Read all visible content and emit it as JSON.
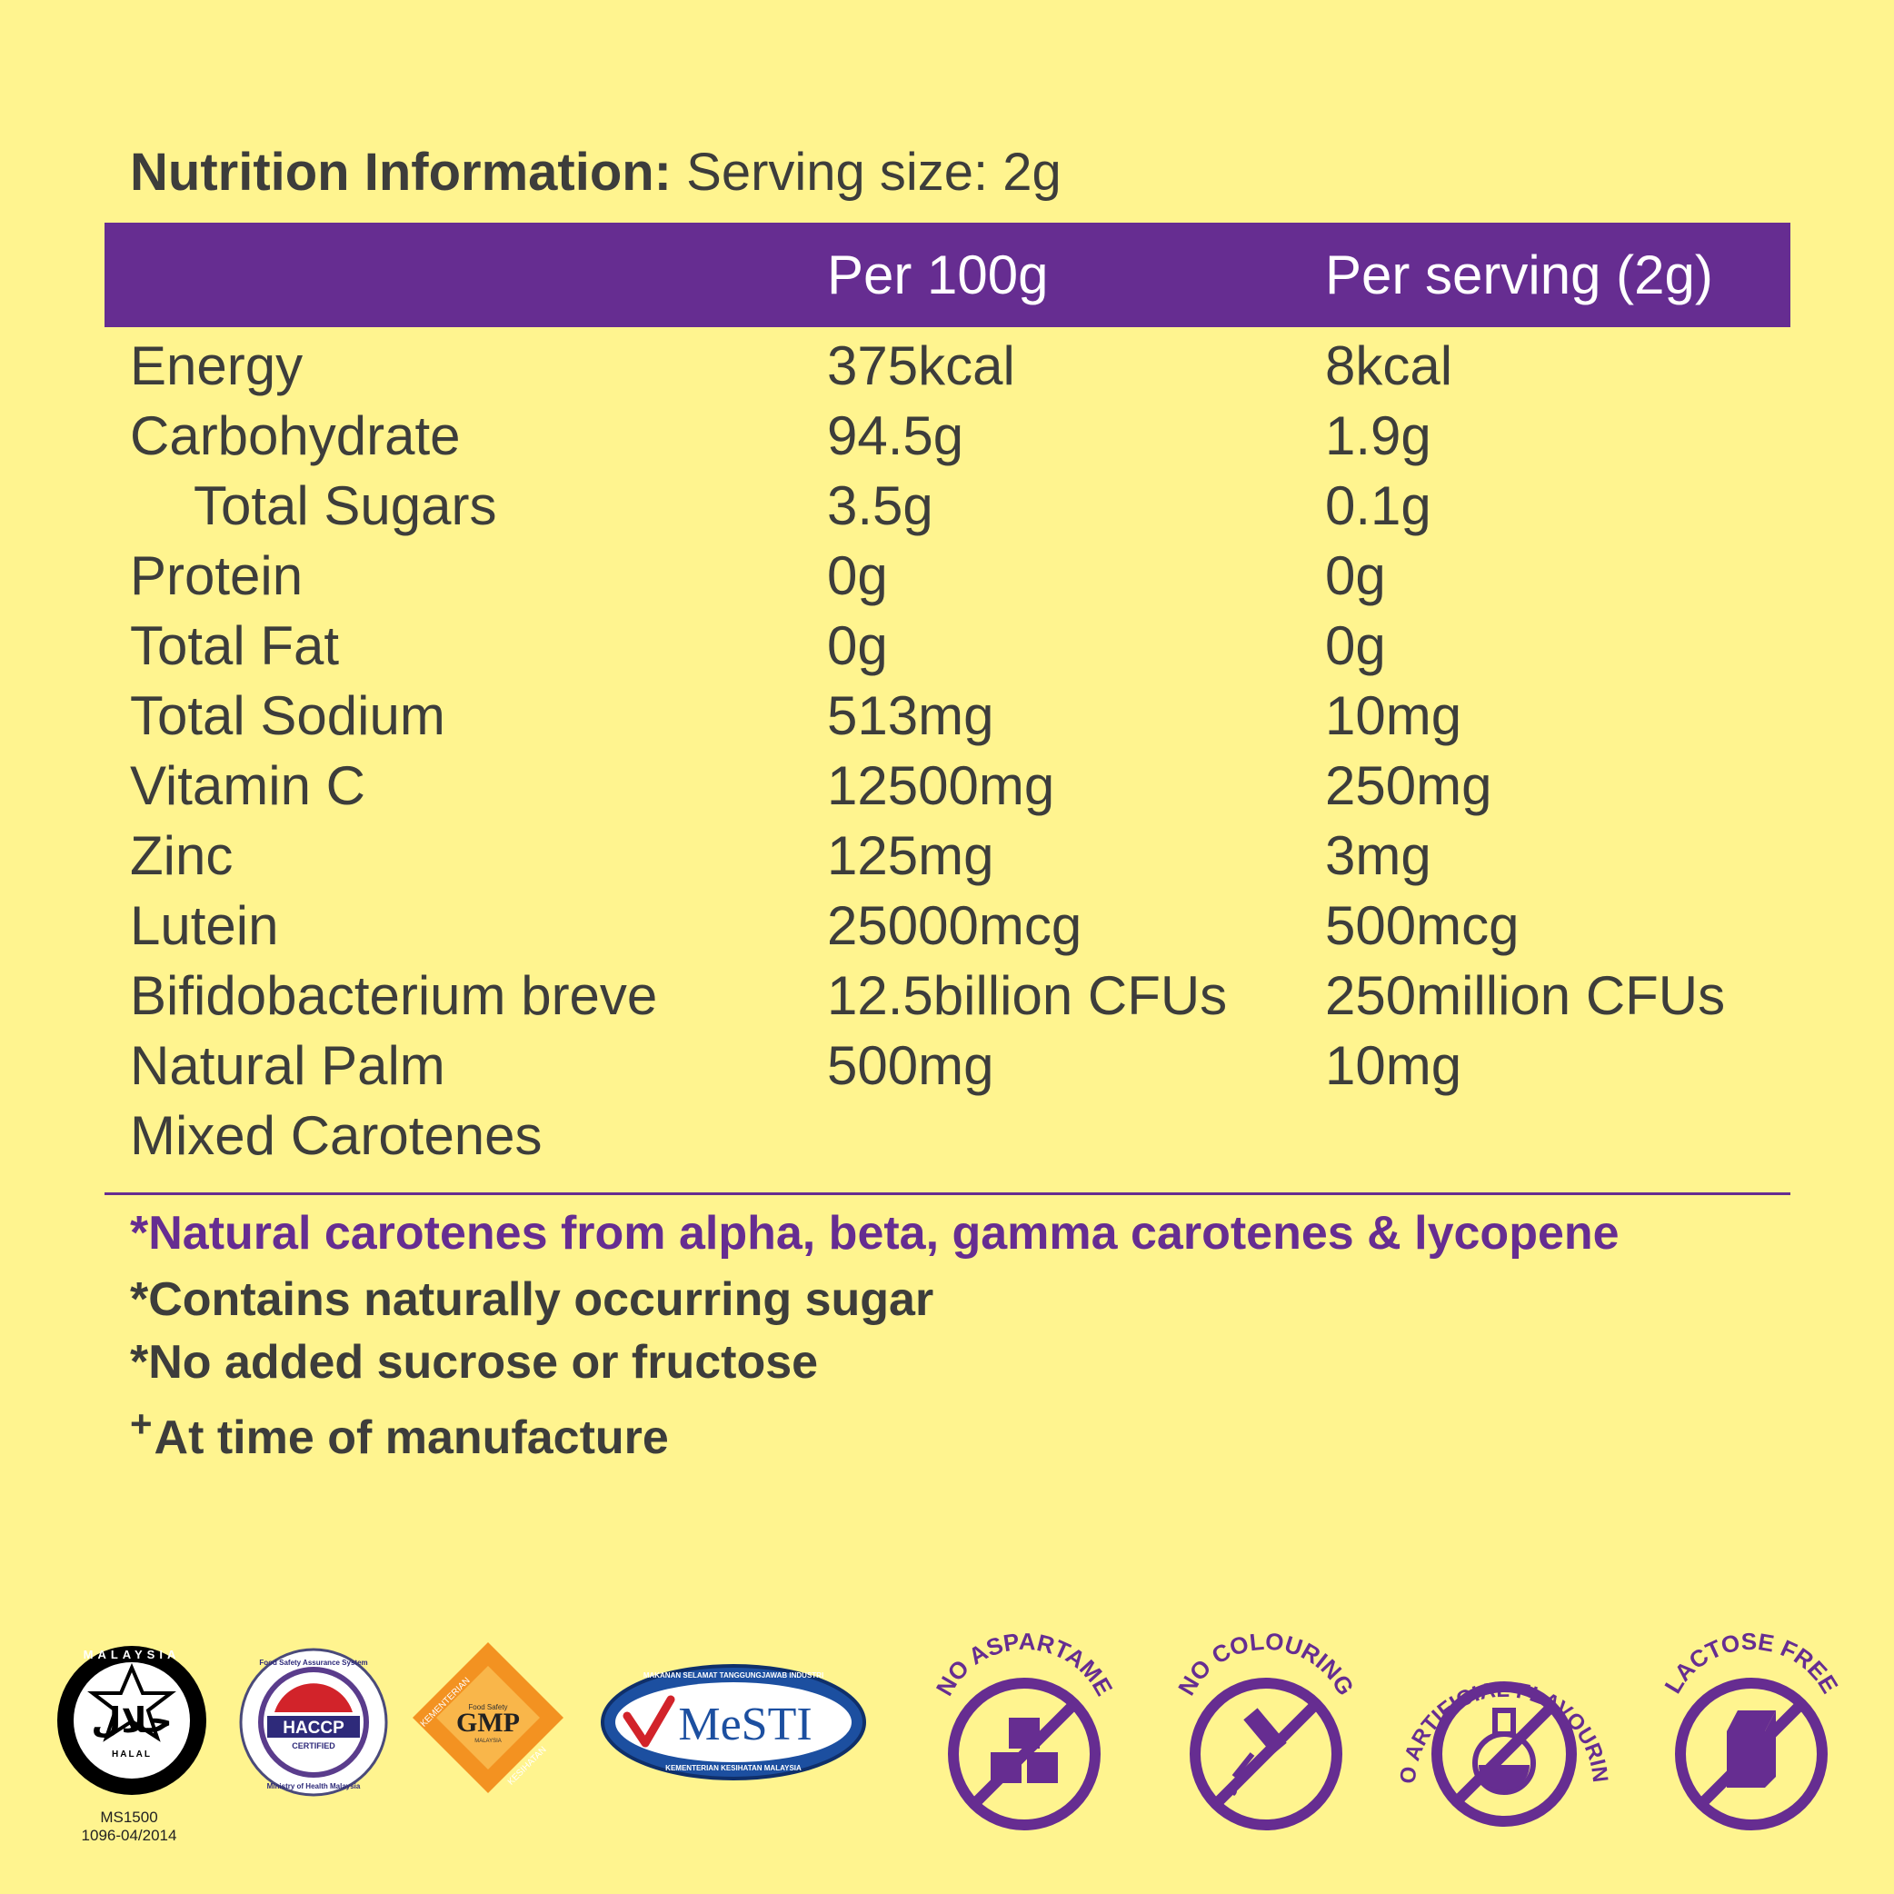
{
  "title": {
    "bold": "Nutrition Information:",
    "rest": " Serving size: 2g"
  },
  "columns": {
    "per100": "Per 100g",
    "perServing": "Per serving (2g)"
  },
  "rows": [
    {
      "name": "Energy",
      "per100": "375kcal",
      "perServing": "8kcal"
    },
    {
      "name": "Carbohydrate",
      "per100": "94.5g",
      "perServing": "1.9g"
    },
    {
      "name": "Total Sugars",
      "per100": "3.5g",
      "perServing": "0.1g",
      "indent": true
    },
    {
      "name": "Protein",
      "per100": "0g",
      "perServing": "0g"
    },
    {
      "name": "Total Fat",
      "per100": "0g",
      "perServing": "0g"
    },
    {
      "name": "Total Sodium",
      "per100": "513mg",
      "perServing": "10mg"
    },
    {
      "name": "Vitamin C",
      "per100": "12500mg",
      "perServing": "250mg"
    },
    {
      "name": "Zinc",
      "per100": "125mg",
      "perServing": "3mg"
    },
    {
      "name": "Lutein",
      "per100": "25000mcg",
      "perServing": "500mcg"
    },
    {
      "name": "Bifidobacterium breve",
      "per100": "12.5billion CFUs",
      "perServing": "250million CFUs"
    },
    {
      "name": "Natural Palm",
      "per100": "500mg",
      "perServing": "10mg"
    },
    {
      "name": "Mixed Carotenes",
      "per100": "",
      "perServing": ""
    }
  ],
  "notes": {
    "carotenes": "*Natural carotenes from alpha, beta, gamma carotenes & lycopene",
    "sugar": "*Contains naturally occurring sugar",
    "sucrose": "*No added sucrose or fructose",
    "manufacture_mark": "+",
    "manufacture": "At time of manufacture"
  },
  "certifications": {
    "halal": {
      "arabic": "حلال",
      "top": "MALAYSIA",
      "bottom": "HALAL",
      "code1": "MS1500",
      "code2": "1096-04/2014"
    },
    "haccp": {
      "ring_top": "Food Safety Assurance System",
      "label": "HACCP",
      "sub": "CERTIFIED",
      "ring_bottom": "Ministry of Health Malaysia"
    },
    "gmp": {
      "label": "GMP",
      "small": "Food Safety",
      "country": "MALAYSIA",
      "left": "KEMENTERIAN",
      "right": "KESIHATAN"
    },
    "mesti": {
      "label": "MeSTI",
      "top": "MAKANAN SELAMAT TANGGUNGJAWAB INDUSTRI",
      "bottom": "KEMENTERIAN KESIHATAN MALAYSIA"
    }
  },
  "badges": [
    {
      "label": "NO ASPARTAME",
      "icon": "sugar-cubes-icon"
    },
    {
      "label": "NO COLOURING",
      "icon": "dropper-icon"
    },
    {
      "label": "NO ARTIFICIAL FLAVOURING",
      "icon": "flask-icon"
    },
    {
      "label": "LACTOSE FREE",
      "icon": "milk-carton-icon"
    }
  ],
  "colors": {
    "background": "#fff48f",
    "purple": "#662d91",
    "text": "#3d3d3b"
  }
}
